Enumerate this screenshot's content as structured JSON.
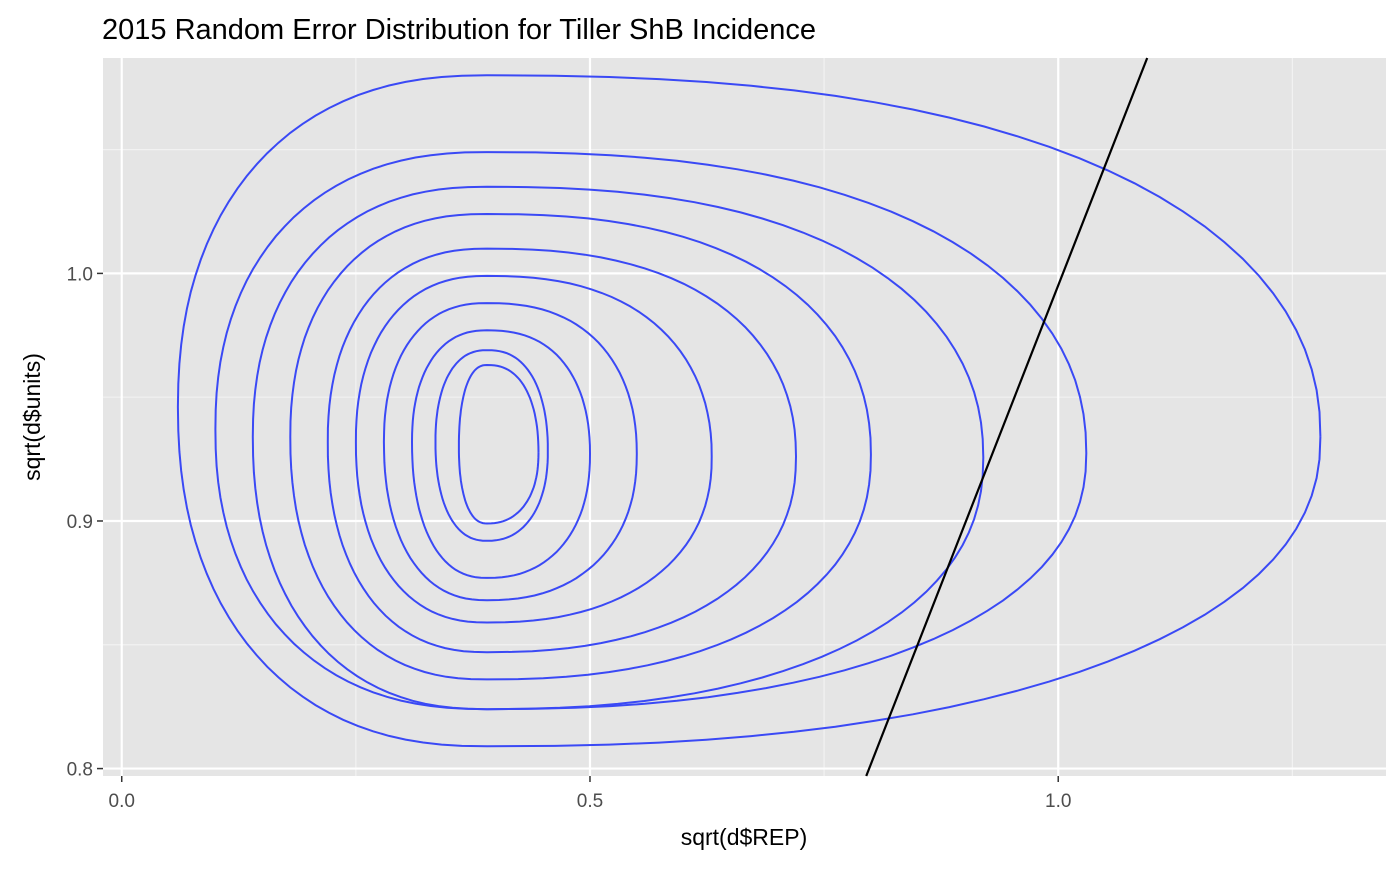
{
  "chart_data": {
    "type": "contour",
    "title": "2015 Random Error Distribution for Tiller ShB Incidence",
    "xlabel": "sqrt(d$REP)",
    "ylabel": "sqrt(d$units)",
    "xlim": [
      -0.02,
      1.35
    ],
    "ylim": [
      0.797,
      1.087
    ],
    "xticks": [
      0.0,
      0.5,
      1.0
    ],
    "xtick_labels": [
      "0.0",
      "0.5",
      "1.0"
    ],
    "yticks": [
      0.8,
      0.9,
      1.0
    ],
    "ytick_labels": [
      "0.8",
      "0.9",
      "1.0"
    ],
    "grid": true,
    "panel_background": "#e5e5e5",
    "contour_color": "#3a49f5",
    "line_color": "#000000",
    "contours": [
      {
        "level": 1,
        "center": [
          0.39,
          0.946
        ],
        "rx_left": 0.33,
        "rx_right": 0.89,
        "ry_top": 0.134,
        "ry_bottom": 0.137,
        "skew": 0.1
      },
      {
        "level": 2,
        "center": [
          0.39,
          0.937
        ],
        "rx_left": 0.29,
        "rx_right": 0.64,
        "ry_top": 0.112,
        "ry_bottom": 0.113,
        "skew": 0.08
      },
      {
        "level": 3,
        "center": [
          0.39,
          0.934
        ],
        "rx_left": 0.25,
        "rx_right": 0.53,
        "ry_top": 0.101,
        "ry_bottom": 0.11,
        "skew": 0.07
      },
      {
        "level": 4,
        "center": [
          0.39,
          0.934
        ],
        "rx_left": 0.21,
        "rx_right": 0.41,
        "ry_top": 0.09,
        "ry_bottom": 0.098,
        "skew": 0.06
      },
      {
        "level": 5,
        "center": [
          0.39,
          0.932
        ],
        "rx_left": 0.17,
        "rx_right": 0.33,
        "ry_top": 0.078,
        "ry_bottom": 0.085,
        "skew": 0.05
      },
      {
        "level": 6,
        "center": [
          0.39,
          0.932
        ],
        "rx_left": 0.14,
        "rx_right": 0.24,
        "ry_top": 0.067,
        "ry_bottom": 0.073,
        "skew": 0.05
      },
      {
        "level": 7,
        "center": [
          0.39,
          0.932
        ],
        "rx_left": 0.11,
        "rx_right": 0.16,
        "ry_top": 0.056,
        "ry_bottom": 0.064,
        "skew": 0.04
      },
      {
        "level": 8,
        "center": [
          0.39,
          0.932
        ],
        "rx_left": 0.08,
        "rx_right": 0.11,
        "ry_top": 0.045,
        "ry_bottom": 0.055,
        "skew": 0.04
      },
      {
        "level": 9,
        "center": [
          0.39,
          0.932
        ],
        "rx_left": 0.055,
        "rx_right": 0.065,
        "ry_top": 0.037,
        "ry_bottom": 0.04,
        "skew": 0.03
      },
      {
        "level": 10,
        "center": [
          0.39,
          0.93
        ],
        "rx_left": 0.03,
        "rx_right": 0.055,
        "ry_top": 0.033,
        "ry_bottom": 0.031,
        "skew": 0.02
      }
    ],
    "reference_line": {
      "x": [
        0.795,
        1.095
      ],
      "y": [
        0.797,
        1.087
      ]
    }
  }
}
